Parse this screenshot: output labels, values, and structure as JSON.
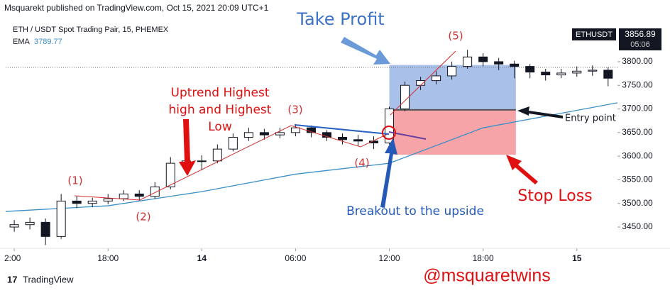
{
  "chart_data": {
    "type": "candlestick",
    "publisher": "Msquarekt published on TradingView.com, Oct 15, 2021 20:09 UTC+1",
    "title": "ETH / USDT Spot Trading Pair, 15, PHEMEX",
    "ema_label": "EMA",
    "ema_value": 3789.77,
    "symbol": "ETHUSDT",
    "last_price": 3856.89,
    "countdown": "05:06",
    "footer": "TradingView",
    "watermark": "@msquaretwins",
    "x": [
      12,
      13,
      14,
      15,
      16,
      17,
      18,
      19,
      20,
      21,
      22,
      23,
      24,
      25,
      26,
      27,
      28,
      29,
      30,
      31,
      32,
      33,
      34,
      35,
      36,
      37,
      38,
      39,
      40,
      41,
      42,
      43,
      44,
      45,
      46,
      47,
      48,
      49,
      50
    ],
    "open": [
      3450,
      3455,
      3460,
      3430,
      3505,
      3500,
      3505,
      3510,
      3520,
      3515,
      3535,
      3585,
      3590,
      3590,
      3615,
      3640,
      3650,
      3645,
      3650,
      3660,
      3650,
      3640,
      3635,
      3632,
      3628,
      3700,
      3750,
      3760,
      3770,
      3790,
      3810,
      3800,
      3795,
      3790,
      3778,
      3772,
      3776,
      3780,
      3782
    ],
    "high": [
      3465,
      3470,
      3468,
      3520,
      3515,
      3512,
      3520,
      3528,
      3528,
      3545,
      3598,
      3600,
      3602,
      3625,
      3648,
      3660,
      3658,
      3660,
      3668,
      3665,
      3655,
      3648,
      3645,
      3642,
      3705,
      3758,
      3768,
      3780,
      3800,
      3825,
      3818,
      3808,
      3802,
      3795,
      3785,
      3785,
      3790,
      3792,
      3788
    ],
    "low": [
      3440,
      3445,
      3412,
      3425,
      3490,
      3492,
      3498,
      3505,
      3506,
      3510,
      3530,
      3575,
      3570,
      3585,
      3610,
      3632,
      3635,
      3638,
      3642,
      3640,
      3632,
      3625,
      3622,
      3615,
      3625,
      3695,
      3740,
      3752,
      3762,
      3785,
      3790,
      3782,
      3765,
      3765,
      3760,
      3765,
      3768,
      3770,
      3748
    ],
    "close": [
      3455,
      3460,
      3430,
      3505,
      3500,
      3505,
      3510,
      3520,
      3515,
      3535,
      3585,
      3590,
      3590,
      3615,
      3640,
      3650,
      3645,
      3650,
      3660,
      3650,
      3640,
      3635,
      3632,
      3628,
      3700,
      3750,
      3760,
      3770,
      3790,
      3810,
      3800,
      3795,
      3790,
      3778,
      3772,
      3776,
      3780,
      3782,
      3765
    ],
    "candle_color": "#131722",
    "ema": {
      "x": [
        11.45,
        18,
        24,
        30,
        36,
        42,
        50.6
      ],
      "values": [
        3483,
        3495,
        3525,
        3562,
        3585,
        3660,
        3713
      ],
      "color": "#3a8fc7"
    },
    "zones": {
      "x_start": 36,
      "x_end": 44.1,
      "target": 3793,
      "entry": 3698,
      "stop": 3603,
      "target_color": "#a9c0e8",
      "stop_color": "#f7a4a8"
    },
    "xlim": [
      11.45,
      50.6
    ],
    "ylim": [
      3405,
      3878
    ],
    "xticks": [
      {
        "value": 12,
        "label": "2:00"
      },
      {
        "value": 18,
        "label": "18:00"
      },
      {
        "value": 24,
        "label": "14"
      },
      {
        "value": 30,
        "label": "06:00"
      },
      {
        "value": 36,
        "label": "12:00"
      },
      {
        "value": 42,
        "label": "18:00"
      },
      {
        "value": 48,
        "label": "15"
      }
    ],
    "yticks": [
      {
        "value": 3450,
        "label": "3450.00"
      },
      {
        "value": 3500,
        "label": "3500.00"
      },
      {
        "value": 3550,
        "label": "3550.00"
      },
      {
        "value": 3600,
        "label": "3600.00"
      },
      {
        "value": 3650,
        "label": "3650.00"
      },
      {
        "value": 3700,
        "label": "3700.00"
      },
      {
        "value": 3750,
        "label": "3750.00"
      },
      {
        "value": 3800,
        "label": "3800.00"
      }
    ],
    "annotations": [
      "Take Profit",
      "(5)",
      "Uptrend Highest",
      "high and Highest",
      "Low",
      "(3)",
      "(1)",
      "(2)",
      "(4)",
      "Entry point",
      "Stop Loss",
      "Breakout to the upside"
    ]
  }
}
